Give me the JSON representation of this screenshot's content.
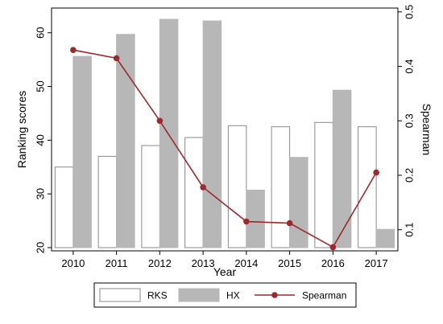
{
  "chart_data": {
    "type": "bar",
    "categories": [
      "2010",
      "2011",
      "2012",
      "2013",
      "2014",
      "2015",
      "2016",
      "2017"
    ],
    "series": [
      {
        "name": "RKS",
        "kind": "bar",
        "axis": "left",
        "color": "#ffffff",
        "values": [
          35.0,
          37.0,
          39.0,
          40.5,
          42.7,
          42.5,
          43.3,
          42.5
        ]
      },
      {
        "name": "HX",
        "kind": "bar",
        "axis": "left",
        "color": "#b7b7b7",
        "values": [
          55.6,
          59.7,
          62.5,
          62.2,
          30.7,
          36.8,
          49.3,
          23.4
        ]
      },
      {
        "name": "Spearman",
        "kind": "line",
        "axis": "right",
        "color": "#9b2a2f",
        "values": [
          0.43,
          0.415,
          0.3,
          0.178,
          0.115,
          0.112,
          0.068,
          0.205
        ]
      }
    ],
    "xlabel": "Year",
    "ylabel": "Ranking scores",
    "y2label": "Spearman",
    "ylim": [
      19.4,
      64.6
    ],
    "y2lim": [
      0.0612,
      0.5071
    ],
    "yticks": [
      "20",
      "30",
      "40",
      "50",
      "60"
    ],
    "y2ticks": [
      "0.1",
      "0.2",
      "0.3",
      "0.4",
      "0.5"
    ],
    "bar_baseline": 20,
    "grid": false,
    "legend_position": "bottom"
  }
}
